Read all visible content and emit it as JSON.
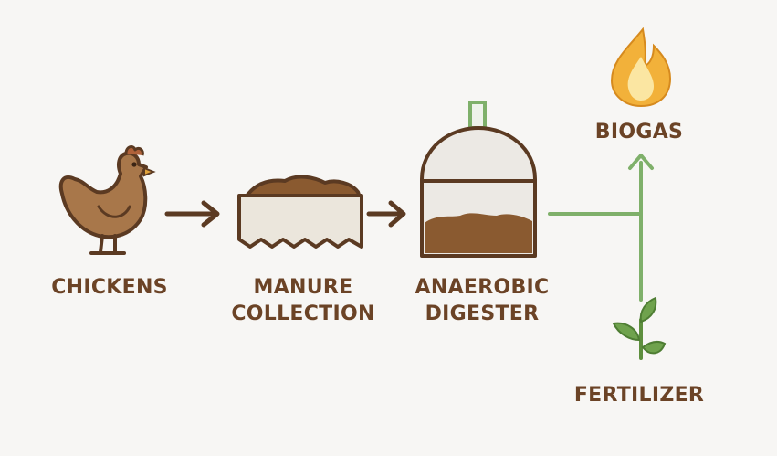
{
  "labels": {
    "chickens": "CHICKENS",
    "manure_line1": "MANURE",
    "manure_line2": "COLLECTION",
    "digester_line1": "ANAEROBIC",
    "digester_line2": "DIGESTER",
    "biogas": "BIOGAS",
    "fertilizer": "FERTILIZER"
  },
  "colors": {
    "brown_text": "#6b4326",
    "brown_dark": "#5b3a22",
    "chicken_fill": "#a8774a",
    "manure_fill": "#8a5a30",
    "green_line": "#7fb06a",
    "leaf_green": "#6fa24d",
    "flame_orange": "#f2b13a",
    "flame_yellow": "#fbe6a2"
  },
  "icons": [
    "chicken-icon",
    "manure-bin-icon",
    "digester-icon",
    "flame-icon",
    "sprout-icon"
  ]
}
